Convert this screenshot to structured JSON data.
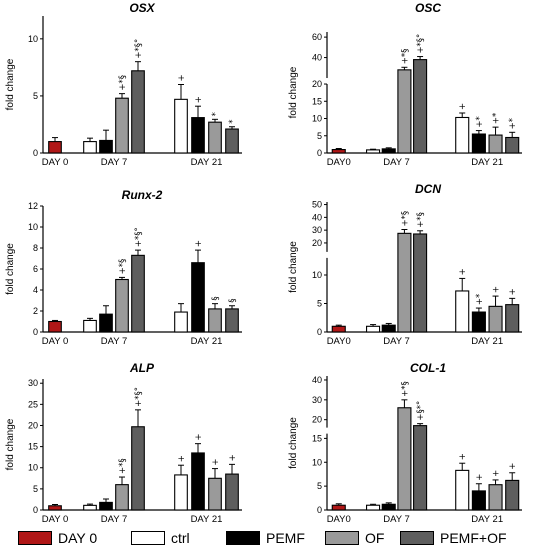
{
  "colors": {
    "DAY 0": "#b01717",
    "ctrl": "#ffffff",
    "PEMF": "#000000",
    "OF": "#9a9a9a",
    "PEMF+OF": "#5e5e5e"
  },
  "legend": [
    {
      "label": "DAY 0",
      "group": "DAY 0"
    },
    {
      "label": "ctrl",
      "group": "ctrl"
    },
    {
      "label": "PEMF",
      "group": "PEMF"
    },
    {
      "label": "OF",
      "group": "OF"
    },
    {
      "label": "PEMF+OF",
      "group": "PEMF+OF"
    }
  ],
  "chart_data": [
    {
      "type": "bar",
      "title": "OSX",
      "ylabel": "fold change",
      "ylim": [
        0,
        12
      ],
      "yticks": [
        0,
        5,
        10
      ],
      "broken_axis": false,
      "day_labels": [
        "DAY 0",
        "DAY 7",
        "DAY 21"
      ],
      "bars": [
        {
          "day": "DAY 0",
          "group": "DAY 0",
          "value": 1.0,
          "err": 0.35,
          "marks": ""
        },
        {
          "day": "DAY 7",
          "group": "ctrl",
          "value": 1.0,
          "err": 0.3,
          "marks": ""
        },
        {
          "day": "DAY 7",
          "group": "PEMF",
          "value": 1.1,
          "err": 0.9,
          "marks": ""
        },
        {
          "day": "DAY 7",
          "group": "OF",
          "value": 4.8,
          "err": 0.4,
          "marks": "+*§"
        },
        {
          "day": "DAY 7",
          "group": "PEMF+OF",
          "value": 7.2,
          "err": 0.8,
          "marks": "+*§°"
        },
        {
          "day": "DAY 21",
          "group": "ctrl",
          "value": 4.7,
          "err": 1.3,
          "marks": "+"
        },
        {
          "day": "DAY 21",
          "group": "PEMF",
          "value": 3.1,
          "err": 1.0,
          "marks": "+"
        },
        {
          "day": "DAY 21",
          "group": "OF",
          "value": 2.7,
          "err": 0.25,
          "marks": "*"
        },
        {
          "day": "DAY 21",
          "group": "PEMF+OF",
          "value": 2.1,
          "err": 0.2,
          "marks": "*"
        }
      ]
    },
    {
      "type": "bar",
      "title": "OSC",
      "ylabel": "fold change",
      "ylim": [
        0,
        65
      ],
      "yticks": [
        0,
        5,
        10,
        15,
        20,
        40,
        60
      ],
      "broken_axis": true,
      "break_at": 20,
      "day_labels": [
        "DAY0",
        "DAY 7",
        "DAY 21"
      ],
      "bars": [
        {
          "day": "DAY0",
          "group": "DAY 0",
          "value": 1.0,
          "err": 0.3,
          "marks": ""
        },
        {
          "day": "DAY 7",
          "group": "ctrl",
          "value": 0.9,
          "err": 0.2,
          "marks": ""
        },
        {
          "day": "DAY 7",
          "group": "PEMF",
          "value": 1.2,
          "err": 0.3,
          "marks": ""
        },
        {
          "day": "DAY 7",
          "group": "OF",
          "value": 28,
          "err": 2.5,
          "marks": "+*§"
        },
        {
          "day": "DAY 7",
          "group": "PEMF+OF",
          "value": 38,
          "err": 3.0,
          "marks": "+*§°"
        },
        {
          "day": "DAY 21",
          "group": "ctrl",
          "value": 10.3,
          "err": 1.3,
          "marks": "+"
        },
        {
          "day": "DAY 21",
          "group": "PEMF",
          "value": 5.5,
          "err": 1.0,
          "marks": "+*"
        },
        {
          "day": "DAY 21",
          "group": "OF",
          "value": 5.2,
          "err": 2.3,
          "marks": "+*"
        },
        {
          "day": "DAY 21",
          "group": "PEMF+OF",
          "value": 4.5,
          "err": 1.5,
          "marks": "+*"
        }
      ]
    },
    {
      "type": "bar",
      "title": "Runx-2",
      "ylabel": "fold change",
      "ylim": [
        0,
        12
      ],
      "yticks": [
        0,
        2,
        4,
        6,
        8,
        10,
        12
      ],
      "broken_axis": false,
      "day_labels": [
        "DAY 0",
        "DAY 7",
        "DAY 21"
      ],
      "bars": [
        {
          "day": "DAY 0",
          "group": "DAY 0",
          "value": 1.0,
          "err": 0.1,
          "marks": ""
        },
        {
          "day": "DAY 7",
          "group": "ctrl",
          "value": 1.1,
          "err": 0.2,
          "marks": ""
        },
        {
          "day": "DAY 7",
          "group": "PEMF",
          "value": 1.7,
          "err": 0.8,
          "marks": ""
        },
        {
          "day": "DAY 7",
          "group": "OF",
          "value": 5.0,
          "err": 0.2,
          "marks": "+*§"
        },
        {
          "day": "DAY 7",
          "group": "PEMF+OF",
          "value": 7.3,
          "err": 0.5,
          "marks": "+*§°"
        },
        {
          "day": "DAY 21",
          "group": "ctrl",
          "value": 1.9,
          "err": 0.8,
          "marks": ""
        },
        {
          "day": "DAY 21",
          "group": "PEMF",
          "value": 6.6,
          "err": 1.2,
          "marks": "+"
        },
        {
          "day": "DAY 21",
          "group": "OF",
          "value": 2.2,
          "err": 0.5,
          "marks": "§"
        },
        {
          "day": "DAY 21",
          "group": "PEMF+OF",
          "value": 2.2,
          "err": 0.3,
          "marks": "§"
        }
      ]
    },
    {
      "type": "bar",
      "title": "DCN",
      "ylabel": "fold change",
      "ylim": [
        0,
        52
      ],
      "yticks": [
        0,
        5,
        10,
        20,
        30,
        40,
        50
      ],
      "broken_axis": true,
      "break_at": 13,
      "day_labels": [
        "DAY0",
        "DAY 7",
        "DAY 21"
      ],
      "bars": [
        {
          "day": "DAY0",
          "group": "DAY 0",
          "value": 1.0,
          "err": 0.2,
          "marks": ""
        },
        {
          "day": "DAY 7",
          "group": "ctrl",
          "value": 1.0,
          "err": 0.3,
          "marks": ""
        },
        {
          "day": "DAY 7",
          "group": "PEMF",
          "value": 1.2,
          "err": 0.3,
          "marks": ""
        },
        {
          "day": "DAY 7",
          "group": "OF",
          "value": 27.5,
          "err": 3.0,
          "marks": "+*§"
        },
        {
          "day": "DAY 7",
          "group": "PEMF+OF",
          "value": 27,
          "err": 2.5,
          "marks": "+*§"
        },
        {
          "day": "DAY 21",
          "group": "ctrl",
          "value": 7.2,
          "err": 2.2,
          "marks": "+"
        },
        {
          "day": "DAY 21",
          "group": "PEMF",
          "value": 3.5,
          "err": 0.7,
          "marks": "+*"
        },
        {
          "day": "DAY 21",
          "group": "OF",
          "value": 4.5,
          "err": 1.8,
          "marks": "+"
        },
        {
          "day": "DAY 21",
          "group": "PEMF+OF",
          "value": 4.8,
          "err": 1.1,
          "marks": "+"
        }
      ]
    },
    {
      "type": "bar",
      "title": "ALP",
      "ylabel": "fold change",
      "ylim": [
        0,
        31
      ],
      "yticks": [
        0,
        5,
        10,
        15,
        20,
        25,
        30
      ],
      "broken_axis": false,
      "day_labels": [
        "DAY 0",
        "DAY 7",
        "DAY 21"
      ],
      "bars": [
        {
          "day": "DAY 0",
          "group": "DAY 0",
          "value": 1.0,
          "err": 0.3,
          "marks": ""
        },
        {
          "day": "DAY 7",
          "group": "ctrl",
          "value": 1.1,
          "err": 0.3,
          "marks": ""
        },
        {
          "day": "DAY 7",
          "group": "PEMF",
          "value": 1.8,
          "err": 0.8,
          "marks": ""
        },
        {
          "day": "DAY 7",
          "group": "OF",
          "value": 6.0,
          "err": 1.8,
          "marks": "+*§"
        },
        {
          "day": "DAY 7",
          "group": "PEMF+OF",
          "value": 19.7,
          "err": 4.0,
          "marks": "+*§°"
        },
        {
          "day": "DAY 21",
          "group": "ctrl",
          "value": 8.3,
          "err": 2.3,
          "marks": "+"
        },
        {
          "day": "DAY 21",
          "group": "PEMF",
          "value": 13.5,
          "err": 2.2,
          "marks": "+"
        },
        {
          "day": "DAY 21",
          "group": "OF",
          "value": 7.5,
          "err": 2.3,
          "marks": "+"
        },
        {
          "day": "DAY 21",
          "group": "PEMF+OF",
          "value": 8.5,
          "err": 2.3,
          "marks": "+"
        }
      ]
    },
    {
      "type": "bar",
      "title": "COL-1",
      "ylabel": "fold change",
      "ylim": [
        0,
        42
      ],
      "yticks": [
        0,
        5,
        10,
        15,
        20,
        30,
        40
      ],
      "broken_axis": true,
      "break_at": 16,
      "day_labels": [
        "DAY0",
        "DAY 7",
        "DAY 21"
      ],
      "bars": [
        {
          "day": "DAY0",
          "group": "DAY 0",
          "value": 1.0,
          "err": 0.3,
          "marks": ""
        },
        {
          "day": "DAY 7",
          "group": "ctrl",
          "value": 1.0,
          "err": 0.2,
          "marks": ""
        },
        {
          "day": "DAY 7",
          "group": "PEMF",
          "value": 1.2,
          "err": 0.3,
          "marks": ""
        },
        {
          "day": "DAY 7",
          "group": "OF",
          "value": 26,
          "err": 4.0,
          "marks": "+*§"
        },
        {
          "day": "DAY 7",
          "group": "PEMF+OF",
          "value": 17,
          "err": 1.0,
          "marks": "+§*°"
        },
        {
          "day": "DAY 21",
          "group": "ctrl",
          "value": 8.3,
          "err": 1.5,
          "marks": "+"
        },
        {
          "day": "DAY 21",
          "group": "PEMF",
          "value": 4.0,
          "err": 1.5,
          "marks": "+"
        },
        {
          "day": "DAY 21",
          "group": "OF",
          "value": 5.3,
          "err": 1.0,
          "marks": "+"
        },
        {
          "day": "DAY 21",
          "group": "PEMF+OF",
          "value": 6.2,
          "err": 1.6,
          "marks": "+"
        }
      ]
    }
  ]
}
